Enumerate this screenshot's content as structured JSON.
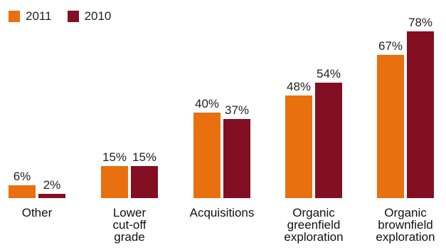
{
  "chart_data": {
    "type": "bar",
    "title": "",
    "xlabel": "",
    "ylabel": "",
    "ylim": [
      0,
      80
    ],
    "grid": false,
    "legend_position": "top-left",
    "categories": [
      [
        "Other"
      ],
      [
        "Lower",
        "cut-off",
        "grade"
      ],
      [
        "Acquisitions"
      ],
      [
        "Organic",
        "greenfield",
        "exploration"
      ],
      [
        "Organic",
        "brownfield",
        "exploration"
      ]
    ],
    "series": [
      {
        "name": "2011",
        "color": "#e8700f",
        "values": [
          6,
          15,
          40,
          48,
          67
        ],
        "labels": [
          "6%",
          "15%",
          "40%",
          "48%",
          "67%"
        ]
      },
      {
        "name": "2010",
        "color": "#820f22",
        "values": [
          2,
          15,
          37,
          54,
          78
        ],
        "labels": [
          "2%",
          "15%",
          "37%",
          "54%",
          "78%"
        ]
      }
    ]
  }
}
